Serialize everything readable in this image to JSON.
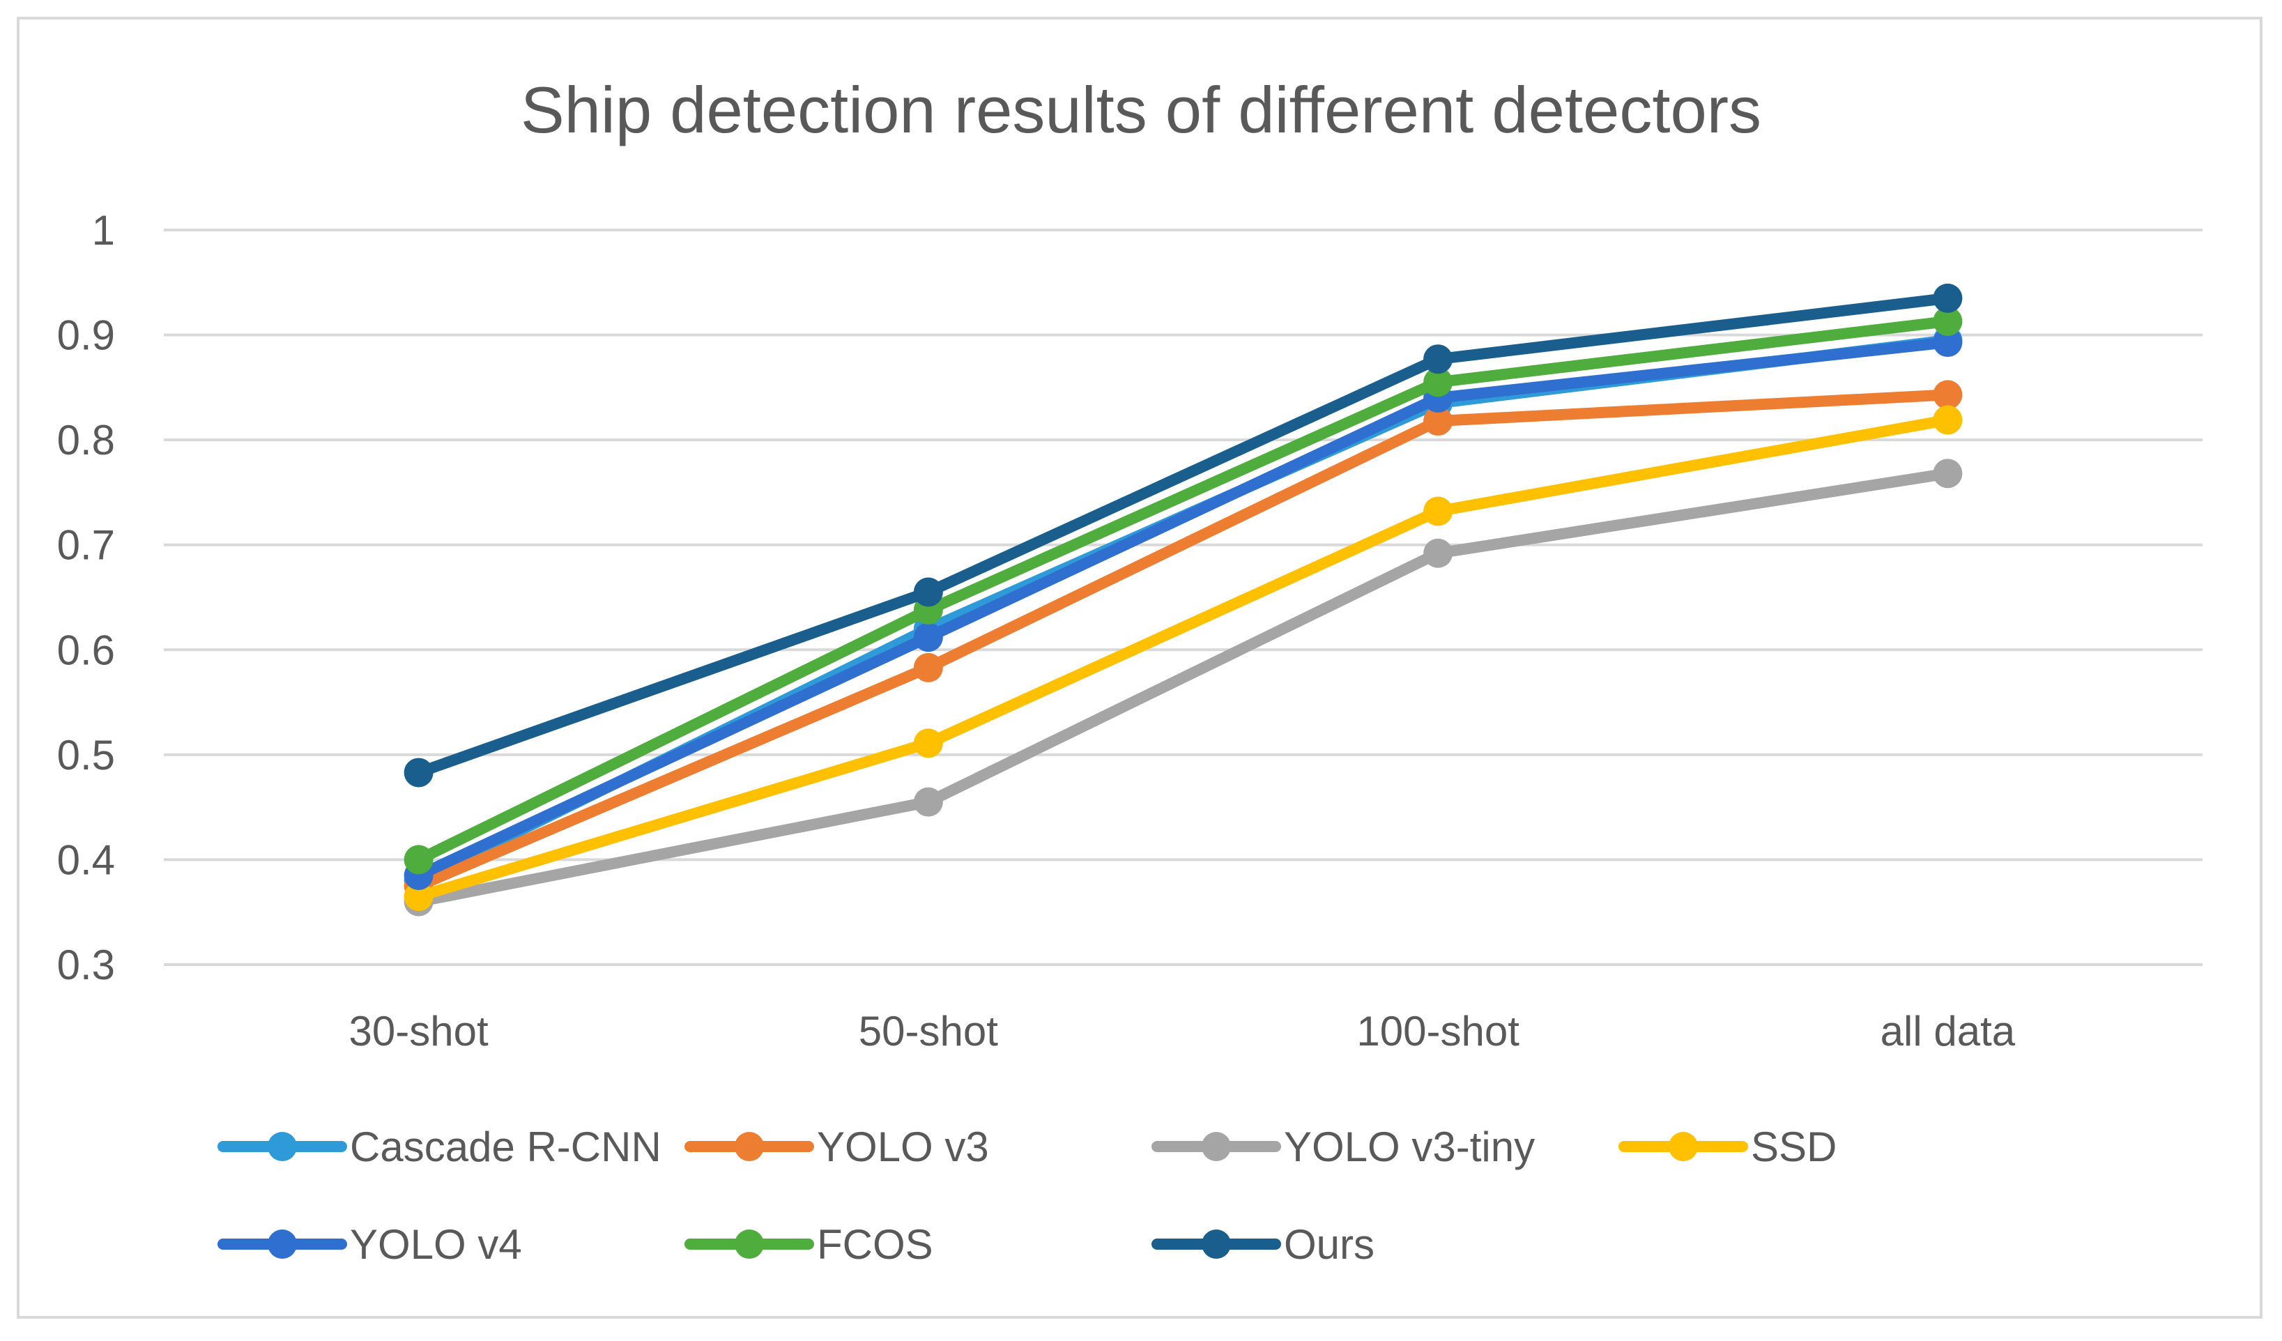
{
  "chart_data": {
    "type": "line",
    "title": "Ship detection results of different detectors",
    "xlabel": "",
    "ylabel": "",
    "categories": [
      "30-shot",
      "50-shot",
      "100-shot",
      "all data"
    ],
    "ylim": [
      0.3,
      1
    ],
    "yticks": [
      0.3,
      0.4,
      0.5,
      0.6,
      0.7,
      0.8,
      0.9,
      1
    ],
    "ytick_labels": [
      "0.3",
      "0.4",
      "0.5",
      "0.6",
      "0.7",
      "0.8",
      "0.9",
      "1"
    ],
    "grid": true,
    "legend_position": "bottom",
    "series": [
      {
        "name": "Cascade R-CNN",
        "color": "#2e9ad8",
        "values": [
          0.38,
          0.62,
          0.835,
          0.895
        ]
      },
      {
        "name": "YOLO v3",
        "color": "#ed7d31",
        "values": [
          0.375,
          0.583,
          0.818,
          0.843
        ]
      },
      {
        "name": "YOLO v3-tiny",
        "color": "#a5a5a5",
        "values": [
          0.36,
          0.455,
          0.692,
          0.768
        ]
      },
      {
        "name": "SSD",
        "color": "#ffc000",
        "values": [
          0.365,
          0.511,
          0.732,
          0.819
        ]
      },
      {
        "name": "YOLO v4",
        "color": "#2f6fd0",
        "values": [
          0.385,
          0.612,
          0.84,
          0.893
        ]
      },
      {
        "name": "FCOS",
        "color": "#4ead3d",
        "values": [
          0.4,
          0.638,
          0.855,
          0.913
        ]
      },
      {
        "name": "Ours",
        "color": "#1a5e8e",
        "values": [
          0.483,
          0.655,
          0.877,
          0.935
        ]
      }
    ]
  }
}
